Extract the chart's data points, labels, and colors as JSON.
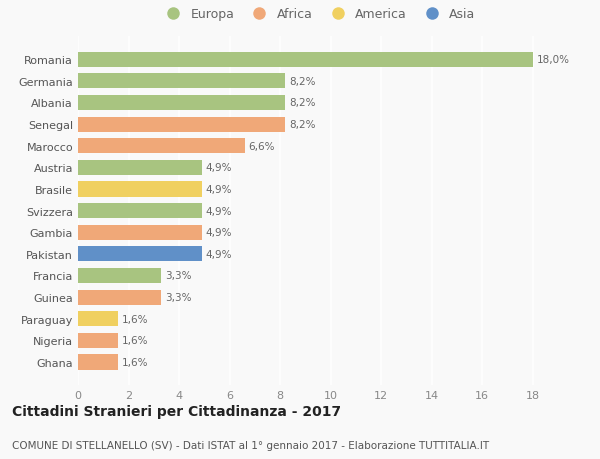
{
  "countries": [
    "Romania",
    "Germania",
    "Albania",
    "Senegal",
    "Marocco",
    "Austria",
    "Brasile",
    "Svizzera",
    "Gambia",
    "Pakistan",
    "Francia",
    "Guinea",
    "Paraguay",
    "Nigeria",
    "Ghana"
  ],
  "values": [
    18.0,
    8.2,
    8.2,
    8.2,
    6.6,
    4.9,
    4.9,
    4.9,
    4.9,
    4.9,
    3.3,
    3.3,
    1.6,
    1.6,
    1.6
  ],
  "labels": [
    "18,0%",
    "8,2%",
    "8,2%",
    "8,2%",
    "6,6%",
    "4,9%",
    "4,9%",
    "4,9%",
    "4,9%",
    "4,9%",
    "3,3%",
    "3,3%",
    "1,6%",
    "1,6%",
    "1,6%"
  ],
  "continents": [
    "Europa",
    "Europa",
    "Europa",
    "Africa",
    "Africa",
    "Europa",
    "America",
    "Europa",
    "Africa",
    "Asia",
    "Europa",
    "Africa",
    "America",
    "Africa",
    "Africa"
  ],
  "continent_colors": {
    "Europa": "#a8c480",
    "Africa": "#f0a878",
    "America": "#f0d060",
    "Asia": "#6090c8"
  },
  "legend_order": [
    "Europa",
    "Africa",
    "America",
    "Asia"
  ],
  "xlim": [
    0,
    19
  ],
  "xticks": [
    0,
    2,
    4,
    6,
    8,
    10,
    12,
    14,
    16,
    18
  ],
  "title": "Cittadini Stranieri per Cittadinanza - 2017",
  "subtitle": "COMUNE DI STELLANELLO (SV) - Dati ISTAT al 1° gennaio 2017 - Elaborazione TUTTITALIA.IT",
  "bg_color": "#f9f9f9",
  "bar_height": 0.7,
  "title_fontsize": 10,
  "subtitle_fontsize": 7.5,
  "label_fontsize": 7.5,
  "tick_fontsize": 8,
  "legend_fontsize": 9
}
